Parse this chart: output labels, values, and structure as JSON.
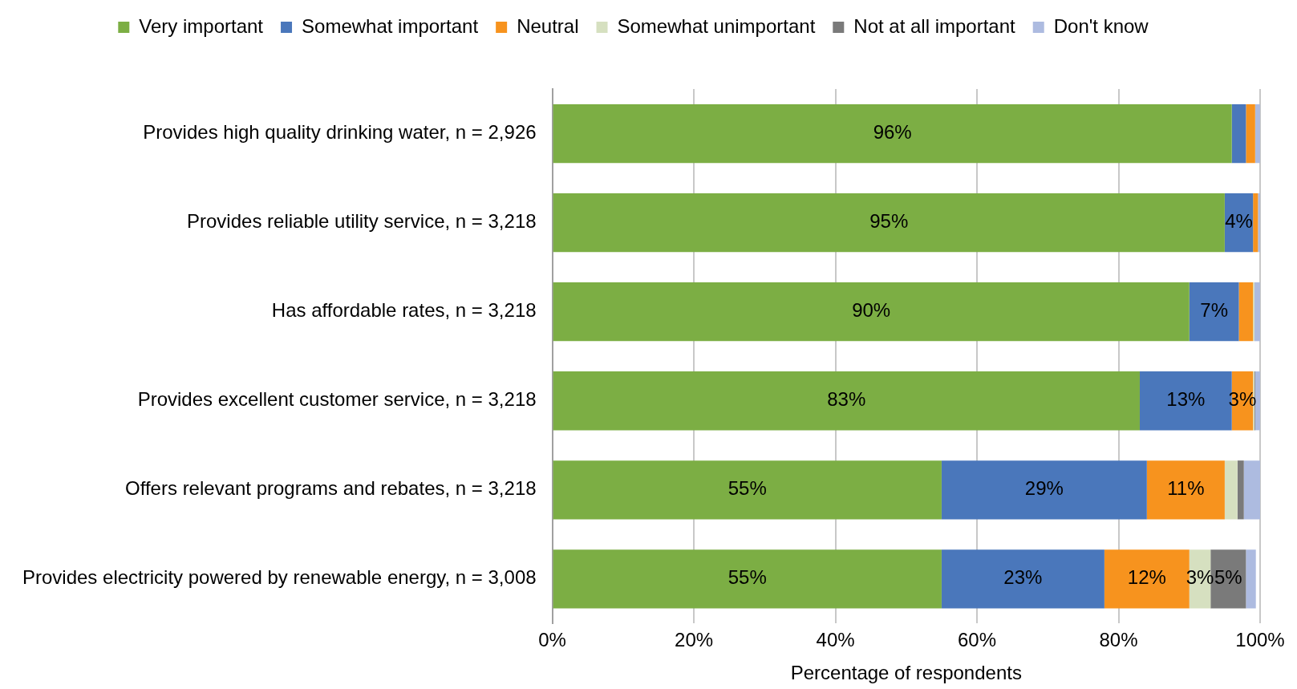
{
  "chart_data": {
    "type": "bar",
    "orientation": "horizontal",
    "stacked": true,
    "legend": "top",
    "grid": "x",
    "xlabel": "Percentage of respondents",
    "categories": [
      "Provides high quality drinking water, n = 2,926",
      "Provides reliable utility service, n = 3,218",
      "Has affordable rates, n = 3,218",
      "Provides excellent customer service, n = 3,218",
      "Offers relevant programs and rebates, n = 3,218",
      "Provides electricity powered by renewable energy, n = 3,008"
    ],
    "xlim": [
      0,
      100
    ],
    "xticks": [
      {
        "value": 0,
        "label": "0%"
      },
      {
        "value": 20,
        "label": "20%"
      },
      {
        "value": 40,
        "label": "40%"
      },
      {
        "value": 60,
        "label": "60%"
      },
      {
        "value": 80,
        "label": "80%"
      },
      {
        "value": 100,
        "label": "100%"
      }
    ],
    "series": [
      {
        "name": "Very important",
        "color": "#7cae44",
        "values": [
          96,
          95,
          90,
          83,
          55,
          55
        ],
        "value_labels": [
          "96%",
          "95%",
          "90%",
          "83%",
          "55%",
          "55%"
        ]
      },
      {
        "name": "Somewhat important",
        "color": "#4a77bb",
        "values": [
          2,
          4,
          7,
          13,
          29,
          23
        ],
        "value_labels": [
          null,
          "4%",
          "7%",
          "13%",
          "29%",
          "23%"
        ]
      },
      {
        "name": "Neutral",
        "color": "#f7931e",
        "values": [
          1.3,
          0.7,
          2,
          3,
          11,
          12
        ],
        "value_labels": [
          null,
          null,
          null,
          "3%",
          "11%",
          "12%"
        ]
      },
      {
        "name": "Somewhat unimportant",
        "color": "#d6e0c0",
        "values": [
          0,
          0,
          0.2,
          0.2,
          1.8,
          3
        ],
        "value_labels": [
          null,
          null,
          null,
          null,
          null,
          "3%"
        ]
      },
      {
        "name": "Not at all important",
        "color": "#7a7a7a",
        "values": [
          0,
          0,
          0,
          0.1,
          0.9,
          5
        ],
        "value_labels": [
          null,
          null,
          null,
          null,
          null,
          "5%"
        ]
      },
      {
        "name": "Don't know",
        "color": "#adbbe0",
        "values": [
          0.7,
          0.3,
          0.8,
          0.7,
          2.3,
          1.4
        ]
      }
    ]
  }
}
